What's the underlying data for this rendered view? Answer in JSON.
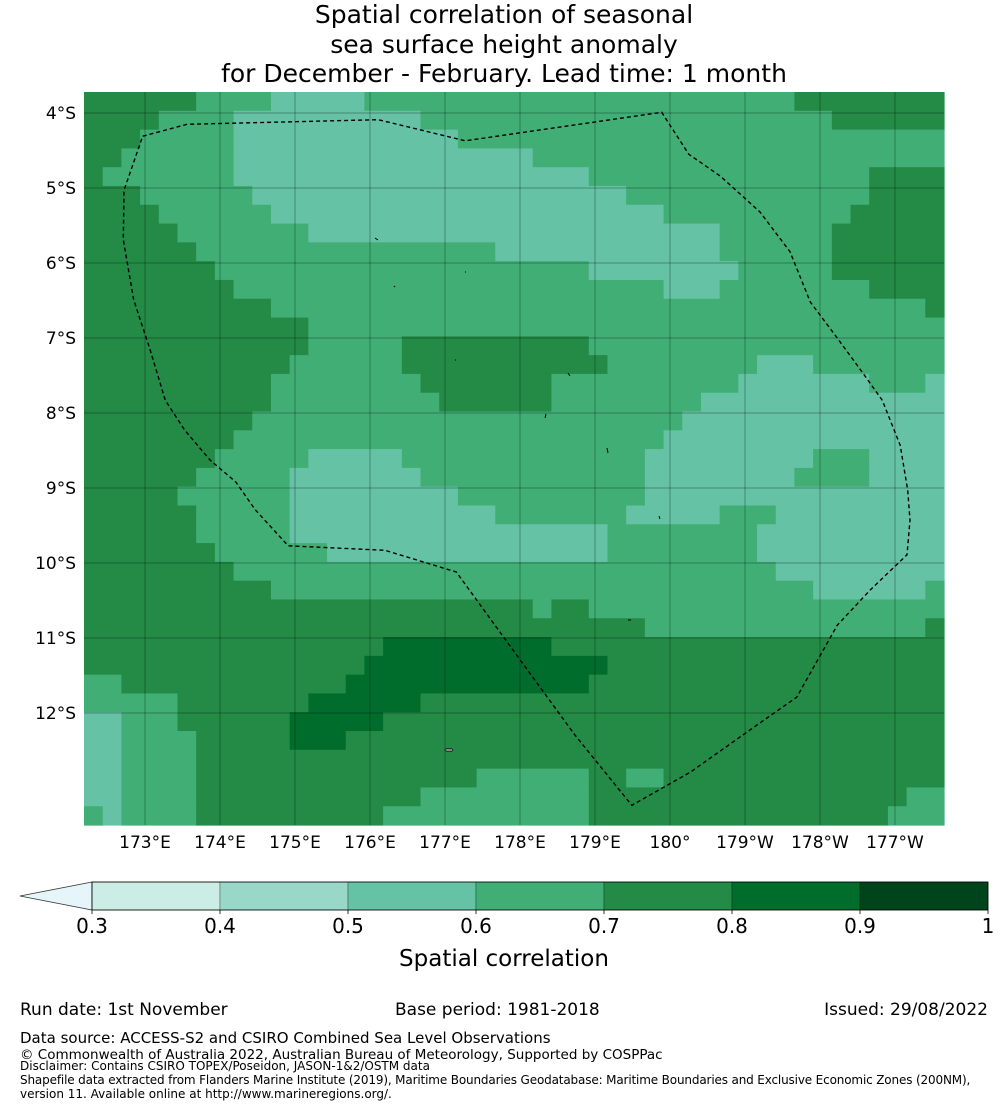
{
  "title": {
    "line1": "Spatial correlation of seasonal",
    "line2": "sea surface height anomaly",
    "line3": "for December - February. Lead time: 1 month"
  },
  "chart_data": {
    "type": "heatmap",
    "description_grid": "rows north to south, run-length encoded [level_index, cell_count], 46 cells per row at 0.25 degree resolution",
    "lon_range_east": [
      172.19,
      183.65
    ],
    "lat_range": [
      -3.72,
      -13.49
    ],
    "x_ticks": [
      {
        "lon": 173,
        "label": "173°E"
      },
      {
        "lon": 174,
        "label": "174°E"
      },
      {
        "lon": 175,
        "label": "175°E"
      },
      {
        "lon": 176,
        "label": "176°E"
      },
      {
        "lon": 177,
        "label": "177°E"
      },
      {
        "lon": 178,
        "label": "178°E"
      },
      {
        "lon": 179,
        "label": "179°E"
      },
      {
        "lon": 180,
        "label": "180°"
      },
      {
        "lon": 181,
        "label": "179°W"
      },
      {
        "lon": 182,
        "label": "178°W"
      },
      {
        "lon": 183,
        "label": "177°W"
      }
    ],
    "y_ticks": [
      {
        "lat": -4,
        "label": "4°S"
      },
      {
        "lat": -5,
        "label": "5°S"
      },
      {
        "lat": -6,
        "label": "6°S"
      },
      {
        "lat": -7,
        "label": "7°S"
      },
      {
        "lat": -8,
        "label": "8°S"
      },
      {
        "lat": -9,
        "label": "9°S"
      },
      {
        "lat": -10,
        "label": "10°S"
      },
      {
        "lat": -11,
        "label": "11°S"
      },
      {
        "lat": -12,
        "label": "12°S"
      }
    ],
    "levels": [
      {
        "range": [
          0.3,
          0.4
        ],
        "color": "#ccece6"
      },
      {
        "range": [
          0.4,
          0.5
        ],
        "color": "#99d8c9"
      },
      {
        "range": [
          0.5,
          0.6
        ],
        "color": "#66c2a4"
      },
      {
        "range": [
          0.6,
          0.7
        ],
        "color": "#41ae76"
      },
      {
        "range": [
          0.7,
          0.8
        ],
        "color": "#238b45"
      },
      {
        "range": [
          0.8,
          0.9
        ],
        "color": "#006d2c"
      },
      {
        "range": [
          0.9,
          1.0
        ],
        "color": "#00441b"
      }
    ],
    "under_color": "#e5f5f9",
    "grid_rle": [
      [
        [
          4,
          6
        ],
        [
          3,
          4
        ],
        [
          2,
          5
        ],
        [
          3,
          23
        ],
        [
          4,
          8
        ]
      ],
      [
        [
          4,
          4
        ],
        [
          3,
          4
        ],
        [
          2,
          10
        ],
        [
          3,
          22
        ],
        [
          4,
          6
        ]
      ],
      [
        [
          4,
          3
        ],
        [
          3,
          5
        ],
        [
          2,
          12
        ],
        [
          3,
          26
        ]
      ],
      [
        [
          4,
          2
        ],
        [
          3,
          6
        ],
        [
          2,
          16
        ],
        [
          3,
          22
        ]
      ],
      [
        [
          4,
          1
        ],
        [
          3,
          7
        ],
        [
          2,
          19
        ],
        [
          3,
          15
        ],
        [
          4,
          4
        ]
      ],
      [
        [
          4,
          3
        ],
        [
          3,
          6
        ],
        [
          2,
          20
        ],
        [
          3,
          13
        ],
        [
          4,
          4
        ]
      ],
      [
        [
          4,
          4
        ],
        [
          3,
          6
        ],
        [
          2,
          21
        ],
        [
          3,
          10
        ],
        [
          4,
          5
        ]
      ],
      [
        [
          4,
          5
        ],
        [
          3,
          7
        ],
        [
          2,
          22
        ],
        [
          3,
          6
        ],
        [
          4,
          6
        ]
      ],
      [
        [
          4,
          6
        ],
        [
          3,
          16
        ],
        [
          2,
          12
        ],
        [
          3,
          6
        ],
        [
          4,
          6
        ]
      ],
      [
        [
          4,
          7
        ],
        [
          3,
          20
        ],
        [
          2,
          8
        ],
        [
          3,
          5
        ],
        [
          4,
          6
        ]
      ],
      [
        [
          4,
          8
        ],
        [
          3,
          23
        ],
        [
          2,
          3
        ],
        [
          3,
          8
        ],
        [
          4,
          4
        ]
      ],
      [
        [
          4,
          10
        ],
        [
          3,
          35
        ],
        [
          4,
          1
        ]
      ],
      [
        [
          4,
          12
        ],
        [
          3,
          34
        ]
      ],
      [
        [
          4,
          12
        ],
        [
          3,
          5
        ],
        [
          4,
          10
        ],
        [
          3,
          19
        ]
      ],
      [
        [
          4,
          11
        ],
        [
          3,
          6
        ],
        [
          4,
          11
        ],
        [
          3,
          8
        ],
        [
          2,
          3
        ],
        [
          3,
          7
        ]
      ],
      [
        [
          4,
          10
        ],
        [
          3,
          8
        ],
        [
          4,
          7
        ],
        [
          3,
          10
        ],
        [
          2,
          7
        ],
        [
          3,
          3
        ],
        [
          2,
          1
        ]
      ],
      [
        [
          4,
          10
        ],
        [
          3,
          9
        ],
        [
          4,
          6
        ],
        [
          3,
          8
        ],
        [
          2,
          13
        ]
      ],
      [
        [
          4,
          9
        ],
        [
          3,
          23
        ],
        [
          2,
          14
        ]
      ],
      [
        [
          4,
          8
        ],
        [
          3,
          23
        ],
        [
          2,
          15
        ]
      ],
      [
        [
          4,
          7
        ],
        [
          3,
          5
        ],
        [
          2,
          5
        ],
        [
          3,
          13
        ],
        [
          2,
          9
        ],
        [
          3,
          3
        ],
        [
          2,
          4
        ]
      ],
      [
        [
          4,
          6
        ],
        [
          3,
          5
        ],
        [
          2,
          7
        ],
        [
          3,
          12
        ],
        [
          2,
          8
        ],
        [
          3,
          4
        ],
        [
          2,
          4
        ]
      ],
      [
        [
          4,
          5
        ],
        [
          3,
          6
        ],
        [
          2,
          9
        ],
        [
          3,
          10
        ],
        [
          2,
          16
        ]
      ],
      [
        [
          4,
          6
        ],
        [
          3,
          5
        ],
        [
          2,
          11
        ],
        [
          3,
          7
        ],
        [
          2,
          5
        ],
        [
          3,
          3
        ],
        [
          2,
          9
        ]
      ],
      [
        [
          4,
          6
        ],
        [
          3,
          5
        ],
        [
          2,
          17
        ],
        [
          3,
          8
        ],
        [
          2,
          10
        ]
      ],
      [
        [
          4,
          7
        ],
        [
          3,
          6
        ],
        [
          2,
          15
        ],
        [
          3,
          8
        ],
        [
          2,
          10
        ]
      ],
      [
        [
          4,
          8
        ],
        [
          3,
          29
        ],
        [
          2,
          9
        ]
      ],
      [
        [
          4,
          10
        ],
        [
          3,
          29
        ],
        [
          2,
          6
        ],
        [
          3,
          1
        ]
      ],
      [
        [
          4,
          24
        ],
        [
          3,
          1
        ],
        [
          4,
          2
        ],
        [
          3,
          19
        ]
      ],
      [
        [
          4,
          30
        ],
        [
          3,
          15
        ],
        [
          4,
          1
        ]
      ],
      [
        [
          4,
          16
        ],
        [
          5,
          9
        ],
        [
          4,
          21
        ]
      ],
      [
        [
          4,
          15
        ],
        [
          5,
          13
        ],
        [
          4,
          18
        ]
      ],
      [
        [
          3,
          2
        ],
        [
          4,
          12
        ],
        [
          5,
          13
        ],
        [
          4,
          19
        ]
      ],
      [
        [
          3,
          5
        ],
        [
          4,
          7
        ],
        [
          5,
          6
        ],
        [
          4,
          28
        ]
      ],
      [
        [
          2,
          2
        ],
        [
          3,
          3
        ],
        [
          4,
          6
        ],
        [
          5,
          5
        ],
        [
          4,
          30
        ]
      ],
      [
        [
          2,
          2
        ],
        [
          3,
          4
        ],
        [
          4,
          5
        ],
        [
          5,
          3
        ],
        [
          4,
          32
        ]
      ],
      [
        [
          2,
          2
        ],
        [
          3,
          4
        ],
        [
          4,
          40
        ]
      ],
      [
        [
          2,
          2
        ],
        [
          3,
          4
        ],
        [
          4,
          15
        ],
        [
          3,
          6
        ],
        [
          4,
          2
        ],
        [
          3,
          2
        ],
        [
          4,
          15
        ]
      ],
      [
        [
          2,
          2
        ],
        [
          3,
          4
        ],
        [
          4,
          12
        ],
        [
          3,
          9
        ],
        [
          4,
          17
        ],
        [
          3,
          2
        ]
      ],
      [
        [
          3,
          1
        ],
        [
          2,
          1
        ],
        [
          3,
          4
        ],
        [
          4,
          10
        ],
        [
          3,
          11
        ],
        [
          4,
          16
        ],
        [
          3,
          3
        ]
      ]
    ],
    "eez_boundary": [
      [
        172.97,
        -4.31
      ],
      [
        173.56,
        -4.15
      ],
      [
        176.11,
        -4.09
      ],
      [
        177.27,
        -4.37
      ],
      [
        179.89,
        -3.99
      ],
      [
        180.25,
        -4.55
      ],
      [
        180.67,
        -4.84
      ],
      [
        181.2,
        -5.32
      ],
      [
        181.6,
        -5.85
      ],
      [
        181.87,
        -6.52
      ],
      [
        182.2,
        -6.96
      ],
      [
        182.56,
        -7.45
      ],
      [
        182.83,
        -7.83
      ],
      [
        183.07,
        -8.43
      ],
      [
        183.17,
        -9.03
      ],
      [
        183.2,
        -9.43
      ],
      [
        183.16,
        -9.89
      ],
      [
        182.67,
        -10.36
      ],
      [
        182.23,
        -10.83
      ],
      [
        181.69,
        -11.79
      ],
      [
        181.16,
        -12.16
      ],
      [
        180.27,
        -12.79
      ],
      [
        179.49,
        -13.23
      ],
      [
        178.73,
        -12.29
      ],
      [
        178.0,
        -11.29
      ],
      [
        177.15,
        -10.12
      ],
      [
        176.2,
        -9.83
      ],
      [
        174.91,
        -9.77
      ],
      [
        174.47,
        -9.29
      ],
      [
        174.21,
        -8.92
      ],
      [
        173.87,
        -8.63
      ],
      [
        173.53,
        -8.23
      ],
      [
        173.27,
        -7.83
      ],
      [
        173.07,
        -7.16
      ],
      [
        172.85,
        -6.49
      ],
      [
        172.71,
        -5.69
      ],
      [
        172.72,
        -5.03
      ],
      [
        172.97,
        -4.31
      ]
    ],
    "colorbar": {
      "ticks": [
        "0.3",
        "0.4",
        "0.5",
        "0.6",
        "0.7",
        "0.8",
        "0.9",
        "1"
      ],
      "label": "Spatial correlation",
      "extend": "min"
    }
  },
  "footer": {
    "run_date": "Run date: 1st November",
    "base_period": "Base period: 1981-2018",
    "issued": "Issued: 29/08/2022",
    "data_source": "Data source: ACCESS-S2 and CSIRO Combined Sea Level Observations",
    "copyright": "© Commonwealth of Australia 2022, Australian Bureau of Meteorology, Supported by COSPPac",
    "disclaimer": "Disclaimer: Contains CSIRO TOPEX/Poseidon, JASON-1&2/OSTM data",
    "shapefile_1": "Shapefile data extracted from Flanders Marine Institute (2019), Maritime Boundaries Geodatabase: Maritime Boundaries and Exclusive Economic Zones (200NM),",
    "shapefile_2": "version 11. Available online at http://www.marineregions.org/."
  }
}
